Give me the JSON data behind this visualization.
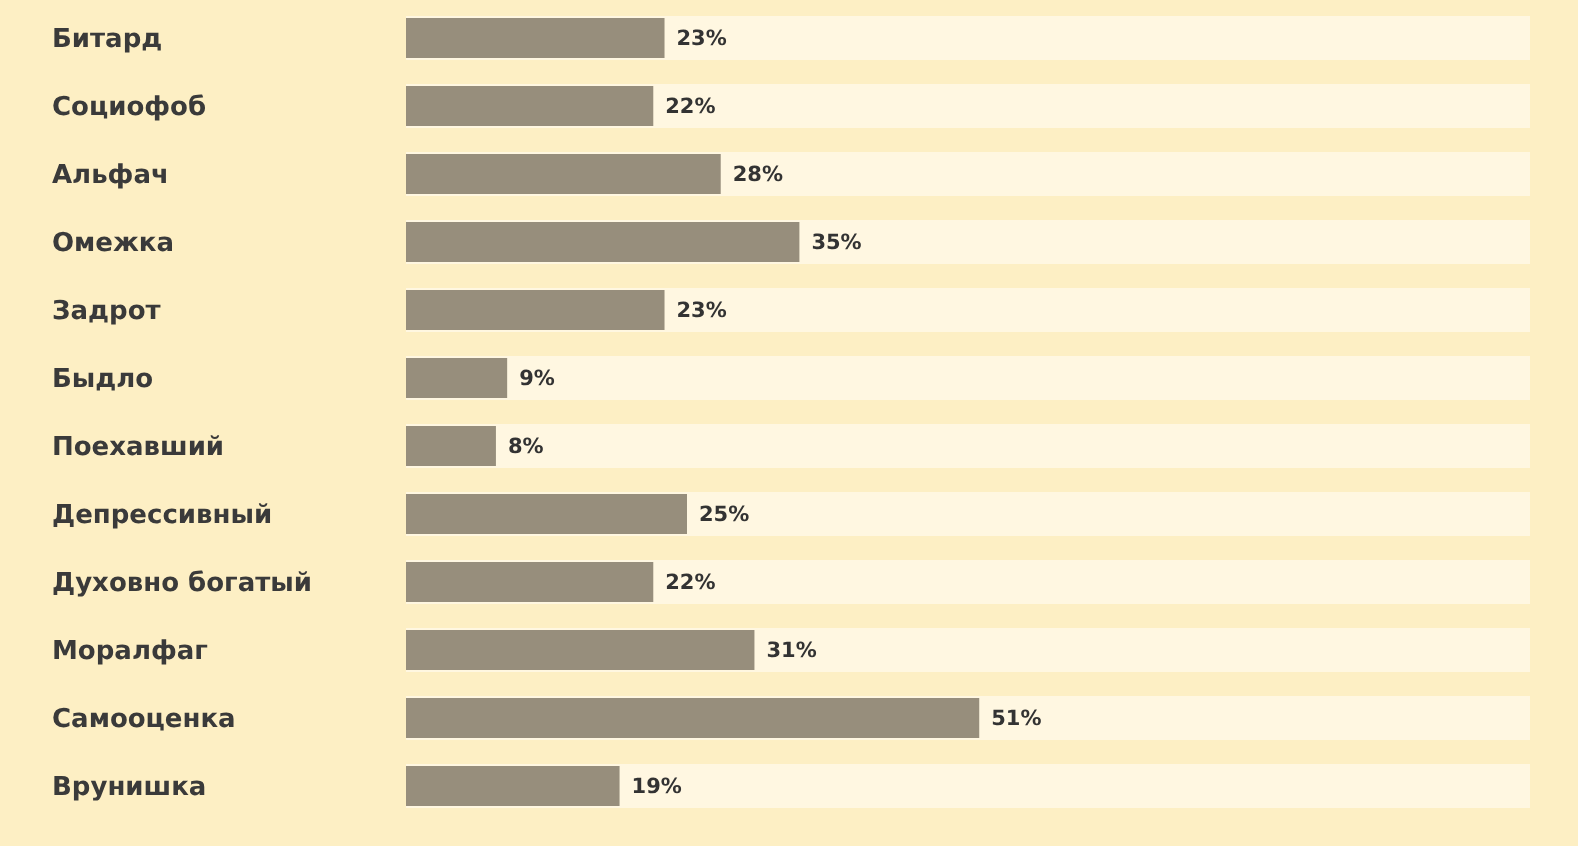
{
  "chart_data": {
    "type": "bar",
    "orientation": "horizontal",
    "categories": [
      "Битард",
      "Социофоб",
      "Альфач",
      "Омежка",
      "Задрот",
      "Быдло",
      "Поехавший",
      "Депрессивный",
      "Духовно богатый",
      "Моралфаг",
      "Самооценка",
      "Врунишка"
    ],
    "values": [
      23,
      22,
      28,
      35,
      23,
      9,
      8,
      25,
      22,
      31,
      51,
      19
    ],
    "value_labels": [
      "23%",
      "22%",
      "28%",
      "35%",
      "23%",
      "9%",
      "8%",
      "25%",
      "22%",
      "31%",
      "51%",
      "19%"
    ],
    "color": "#978e7c",
    "xlim": [
      0,
      100
    ],
    "tick_labels": "y"
  }
}
